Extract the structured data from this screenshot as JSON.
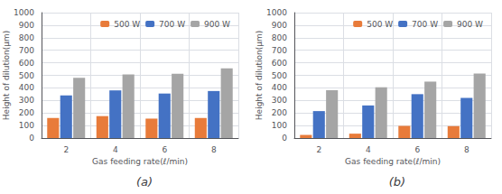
{
  "chart_data": [
    {
      "type": "bar",
      "title": "(a)",
      "categories": [
        2,
        4,
        6,
        8
      ],
      "series": [
        {
          "name": "500 W",
          "color": "#E87B3A",
          "values": [
            160,
            175,
            155,
            160
          ]
        },
        {
          "name": "700 W",
          "color": "#4472C4",
          "values": [
            340,
            380,
            355,
            375
          ]
        },
        {
          "name": "900 W",
          "color": "#A5A5A5",
          "values": [
            480,
            507,
            512,
            555
          ]
        }
      ],
      "xlabel": "Gas feeding rate(ℓ/min)",
      "ylabel": "Height of dilution(μm)",
      "ylim": [
        0,
        1000
      ],
      "yticks": [
        0,
        100,
        200,
        300,
        400,
        500,
        600,
        700,
        800,
        900,
        1000
      ],
      "grid": true,
      "legend": "upper right"
    },
    {
      "type": "bar",
      "title": "(b)",
      "categories": [
        2,
        4,
        6,
        8
      ],
      "series": [
        {
          "name": "500 W",
          "color": "#E87B3A",
          "values": [
            25,
            35,
            97,
            95
          ]
        },
        {
          "name": "700 W",
          "color": "#4472C4",
          "values": [
            215,
            260,
            350,
            320
          ]
        },
        {
          "name": "900 W",
          "color": "#A5A5A5",
          "values": [
            382,
            405,
            450,
            515
          ]
        }
      ],
      "xlabel": "Gas feeding rate(ℓ/min)",
      "ylabel": "Height of dilution(μm)",
      "ylim": [
        0,
        1000
      ],
      "yticks": [
        0,
        100,
        200,
        300,
        400,
        500,
        600,
        700,
        800,
        900,
        1000
      ],
      "grid": true,
      "legend": "upper right"
    }
  ]
}
